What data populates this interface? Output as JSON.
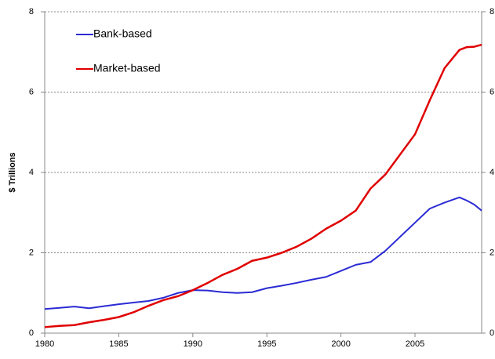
{
  "chart_data": {
    "type": "line",
    "y_label": "$ Trillions",
    "x": [
      1980,
      1981,
      1982,
      1983,
      1984,
      1985,
      1986,
      1987,
      1988,
      1989,
      1990,
      1991,
      1992,
      1993,
      1994,
      1995,
      1996,
      1997,
      1998,
      1999,
      2000,
      2001,
      2002,
      2003,
      2004,
      2005,
      2006,
      2007,
      2008,
      2008.5,
      2009,
      2009.5
    ],
    "series": [
      {
        "name": "Bank-based",
        "color": "#2b2bd4",
        "values": [
          0.6,
          0.63,
          0.66,
          0.62,
          0.67,
          0.72,
          0.76,
          0.8,
          0.88,
          1.0,
          1.07,
          1.06,
          1.02,
          1.0,
          1.02,
          1.12,
          1.18,
          1.25,
          1.33,
          1.4,
          1.55,
          1.7,
          1.77,
          2.05,
          2.4,
          2.75,
          3.1,
          3.25,
          3.38,
          3.3,
          3.2,
          3.05
        ]
      },
      {
        "name": "Market-based",
        "color": "#e00000",
        "values": [
          0.15,
          0.18,
          0.2,
          0.27,
          0.33,
          0.4,
          0.52,
          0.68,
          0.82,
          0.92,
          1.07,
          1.25,
          1.45,
          1.6,
          1.8,
          1.88,
          2.0,
          2.15,
          2.35,
          2.6,
          2.8,
          3.05,
          3.6,
          3.95,
          4.45,
          4.95,
          5.8,
          6.6,
          7.05,
          7.12,
          7.13,
          7.18
        ]
      }
    ],
    "xlim": [
      1980,
      2009.5
    ],
    "xticks": [
      1980,
      1985,
      1990,
      1995,
      2000,
      2005
    ],
    "ylim": [
      0,
      8
    ],
    "yticks": [
      0,
      2,
      4,
      6,
      8
    ],
    "y2lim": [
      0,
      8
    ],
    "y2ticks": [
      0,
      2,
      4,
      6,
      8
    ],
    "grid": true,
    "legend": "upper left"
  }
}
